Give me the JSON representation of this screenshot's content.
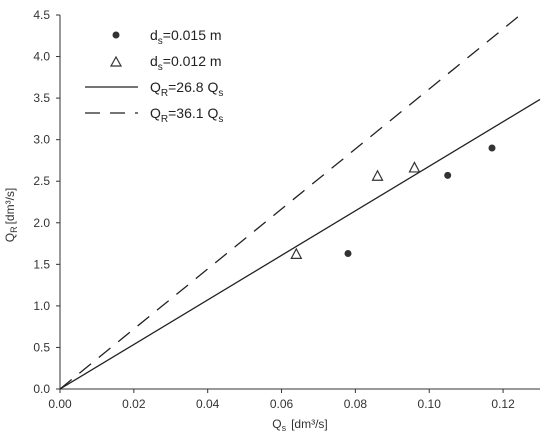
{
  "chart_data": {
    "type": "scatter",
    "xlabel": {
      "main": "Q",
      "sub": "s",
      "unit": "[dm³/s]"
    },
    "ylabel": {
      "main": "Q",
      "sub": "R",
      "unit": "[dm³/s]"
    },
    "xlim": [
      0.0,
      0.13
    ],
    "ylim": [
      0.0,
      4.5
    ],
    "xticks": [
      "0.00",
      "0.02",
      "0.04",
      "0.06",
      "0.08",
      "0.10",
      "0.12"
    ],
    "yticks": [
      "0.0",
      "0.5",
      "1.0",
      "1.5",
      "2.0",
      "2.5",
      "3.0",
      "3.5",
      "4.0",
      "4.5"
    ],
    "grid": false,
    "legend_position": "top-left",
    "series": [
      {
        "label": {
          "main": "d",
          "sub": "s",
          "rest": "=0.015 m"
        },
        "marker": "filled-circle",
        "color": "#333333",
        "x": [
          0.078,
          0.105,
          0.117
        ],
        "y": [
          1.63,
          2.57,
          2.9
        ]
      },
      {
        "label": {
          "main": "d",
          "sub": "s",
          "rest": "=0.012 m"
        },
        "marker": "open-triangle",
        "color": "#333333",
        "x": [
          0.064,
          0.086,
          0.096
        ],
        "y": [
          1.62,
          2.56,
          2.66
        ]
      }
    ],
    "lines": [
      {
        "label": {
          "pre": "Q",
          "sub1": "R",
          "mid": "=26.8 Q",
          "sub2": "s"
        },
        "slope": 26.8,
        "style": "solid",
        "color": "#222222"
      },
      {
        "label": {
          "pre": "Q",
          "sub1": "R",
          "mid": "=36.1 Q",
          "sub2": "s"
        },
        "slope": 36.1,
        "style": "dashed",
        "color": "#222222"
      }
    ]
  }
}
